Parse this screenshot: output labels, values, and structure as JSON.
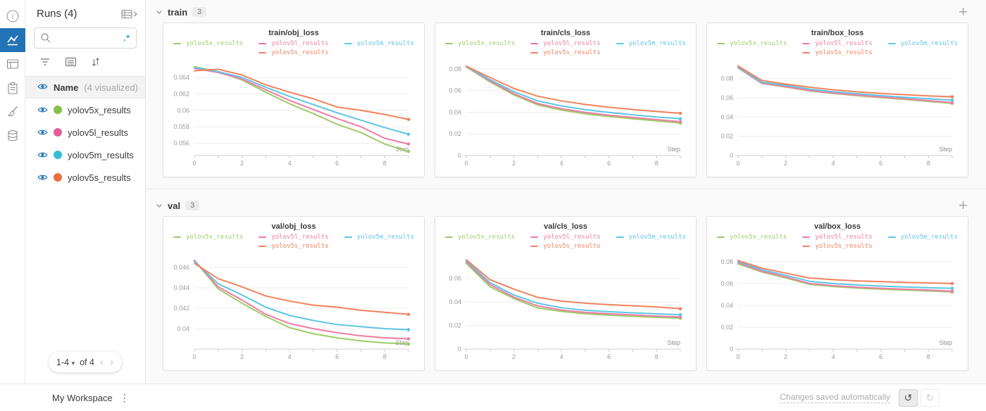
{
  "colors": {
    "accent_blue": "#2273b5",
    "regex_teal": "#00a8c5"
  },
  "icons": {
    "caret": "▾",
    "chev_left": "‹",
    "chev_right": "›",
    "plus": "+",
    "kebab": "⋮",
    "undo": "↺",
    "redo": "↻"
  },
  "rail": {
    "items": [
      "info-icon",
      "line-chart-icon",
      "panels-icon",
      "clipboard-icon",
      "brush-icon",
      "database-icon"
    ],
    "selected": "line-chart-icon"
  },
  "sidebar": {
    "title": "Runs (4)",
    "search": {
      "value": "",
      "placeholder": "",
      "regex_label": ".*"
    },
    "header_row": {
      "label": "Name",
      "meta": "(4 visualized)"
    },
    "runs": [
      {
        "name": "yolov5x_results",
        "color": "#84bf4a"
      },
      {
        "name": "yolov5l_results",
        "color": "#e2609a"
      },
      {
        "name": "yolov5m_results",
        "color": "#33bdd8"
      },
      {
        "name": "yolov5s_results",
        "color": "#eb6e3f"
      }
    ],
    "pagination": {
      "range": "1-4",
      "of": "of 4"
    }
  },
  "sections": [
    {
      "id": "train",
      "label": "train",
      "badge": "3"
    },
    {
      "id": "val",
      "label": "val",
      "badge": "3"
    }
  ],
  "footer": {
    "workspace": "My Workspace",
    "status": "Changes saved automatically"
  },
  "chart_data": [
    {
      "type": "line",
      "section": "train",
      "title": "train/obj_loss",
      "xlabel": "Step",
      "x": [
        0,
        1,
        2,
        3,
        4,
        5,
        6,
        7,
        8,
        9
      ],
      "xtick_label_values": [
        0,
        2,
        4,
        6,
        8
      ],
      "xtick_labels": [
        "0",
        "2",
        "4",
        "6",
        "8"
      ],
      "ylim": [
        0.0545,
        0.0658
      ],
      "yticks": [
        0.056,
        0.058,
        0.06,
        0.062,
        0.064
      ],
      "ytick_labels": [
        "0.056",
        "0.058",
        "0.06",
        "0.062",
        "0.064"
      ],
      "grid": true,
      "legend_position": "top",
      "series": [
        {
          "name": "yolov5x_results",
          "color": "#9ecb66",
          "values": [
            0.0653,
            0.0647,
            0.0637,
            0.0622,
            0.0608,
            0.0596,
            0.0583,
            0.0573,
            0.0559,
            0.055
          ]
        },
        {
          "name": "yolov5l_results",
          "color": "#f07ba5",
          "values": [
            0.0651,
            0.0646,
            0.0638,
            0.0625,
            0.0612,
            0.0601,
            0.059,
            0.058,
            0.0566,
            0.0559
          ]
        },
        {
          "name": "yolov5m_results",
          "color": "#5ec5e4",
          "values": [
            0.0652,
            0.0647,
            0.064,
            0.0628,
            0.0617,
            0.0607,
            0.0597,
            0.0588,
            0.0579,
            0.0571
          ]
        },
        {
          "name": "yolov5s_results",
          "color": "#f2825c",
          "values": [
            0.0648,
            0.065,
            0.0643,
            0.0631,
            0.0622,
            0.0614,
            0.0604,
            0.06,
            0.0595,
            0.0589
          ]
        }
      ]
    },
    {
      "type": "line",
      "section": "train",
      "title": "train/cls_loss",
      "xlabel": "Step",
      "x": [
        0,
        1,
        2,
        3,
        4,
        5,
        6,
        7,
        8,
        9
      ],
      "xtick_label_values": [
        0,
        2,
        4,
        6,
        8
      ],
      "xtick_labels": [
        "0",
        "2",
        "4",
        "6",
        "8"
      ],
      "ylim": [
        0,
        0.0858
      ],
      "yticks": [
        0,
        0.02,
        0.04,
        0.06,
        0.08
      ],
      "ytick_labels": [
        "0",
        "0.02",
        "0.04",
        "0.06",
        "0.08"
      ],
      "grid": true,
      "legend_position": "top",
      "series": [
        {
          "name": "yolov5x_results",
          "color": "#9ecb66",
          "values": [
            0.082,
            0.068,
            0.056,
            0.0468,
            0.042,
            0.0385,
            0.036,
            0.034,
            0.032,
            0.03
          ]
        },
        {
          "name": "yolov5l_results",
          "color": "#f07ba5",
          "values": [
            0.082,
            0.069,
            0.0572,
            0.048,
            0.0432,
            0.0398,
            0.0372,
            0.0352,
            0.0332,
            0.0312
          ]
        },
        {
          "name": "yolov5m_results",
          "color": "#5ec5e4",
          "values": [
            0.0822,
            0.07,
            0.059,
            0.0505,
            0.0458,
            0.0424,
            0.0398,
            0.0376,
            0.0356,
            0.034
          ]
        },
        {
          "name": "yolov5s_results",
          "color": "#f2825c",
          "values": [
            0.0825,
            0.072,
            0.062,
            0.0548,
            0.0505,
            0.0472,
            0.0446,
            0.0425,
            0.0407,
            0.039
          ]
        }
      ]
    },
    {
      "type": "line",
      "section": "train",
      "title": "train/box_loss",
      "xlabel": "Step",
      "x": [
        0,
        1,
        2,
        3,
        4,
        5,
        6,
        7,
        8,
        9
      ],
      "xtick_label_values": [
        0,
        2,
        4,
        6,
        8
      ],
      "xtick_labels": [
        "0",
        "2",
        "4",
        "6",
        "8"
      ],
      "ylim": [
        0,
        0.0965
      ],
      "yticks": [
        0,
        0.02,
        0.04,
        0.06,
        0.08
      ],
      "ytick_labels": [
        "0",
        "0.02",
        "0.04",
        "0.06",
        "0.08"
      ],
      "grid": true,
      "legend_position": "top",
      "series": [
        {
          "name": "yolov5x_results",
          "color": "#9ecb66",
          "values": [
            0.091,
            0.0748,
            0.0712,
            0.0672,
            0.0645,
            0.0622,
            0.0602,
            0.0583,
            0.0562,
            0.0542
          ]
        },
        {
          "name": "yolov5l_results",
          "color": "#f07ba5",
          "values": [
            0.0913,
            0.0752,
            0.0716,
            0.0676,
            0.065,
            0.0628,
            0.0608,
            0.059,
            0.057,
            0.055
          ]
        },
        {
          "name": "yolov5m_results",
          "color": "#5ec5e4",
          "values": [
            0.092,
            0.0762,
            0.0728,
            0.069,
            0.0663,
            0.0642,
            0.0622,
            0.0605,
            0.0589,
            0.0575
          ]
        },
        {
          "name": "yolov5s_results",
          "color": "#f2825c",
          "values": [
            0.093,
            0.078,
            0.0742,
            0.071,
            0.0683,
            0.0662,
            0.0645,
            0.0632,
            0.062,
            0.061
          ]
        }
      ]
    },
    {
      "type": "line",
      "section": "val",
      "title": "val/obj_loss",
      "xlabel": "Step",
      "x": [
        0,
        1,
        2,
        3,
        4,
        5,
        6,
        7,
        8,
        9
      ],
      "xtick_label_values": [
        0,
        2,
        4,
        6,
        8
      ],
      "xtick_labels": [
        "0",
        "2",
        "4",
        "6",
        "8"
      ],
      "ylim": [
        0.038,
        0.0471
      ],
      "yticks": [
        0.04,
        0.042,
        0.044,
        0.046
      ],
      "ytick_labels": [
        "0.04",
        "0.042",
        "0.044",
        "0.046"
      ],
      "grid": true,
      "legend_position": "top",
      "series": [
        {
          "name": "yolov5x_results",
          "color": "#9ecb66",
          "values": [
            0.0467,
            0.0439,
            0.0425,
            0.0412,
            0.0401,
            0.0395,
            0.0391,
            0.0388,
            0.0386,
            0.0385
          ]
        },
        {
          "name": "yolov5l_results",
          "color": "#f07ba5",
          "values": [
            0.0467,
            0.0441,
            0.0428,
            0.0414,
            0.0405,
            0.04,
            0.0396,
            0.0393,
            0.0391,
            0.039
          ]
        },
        {
          "name": "yolov5m_results",
          "color": "#5ec5e4",
          "values": [
            0.0466,
            0.0444,
            0.0433,
            0.0421,
            0.0413,
            0.0408,
            0.0404,
            0.0402,
            0.04,
            0.0399
          ]
        },
        {
          "name": "yolov5s_results",
          "color": "#f2825c",
          "values": [
            0.0464,
            0.0449,
            0.0441,
            0.0432,
            0.0427,
            0.0423,
            0.0421,
            0.0418,
            0.0416,
            0.0414
          ]
        }
      ]
    },
    {
      "type": "line",
      "section": "val",
      "title": "val/cls_loss",
      "xlabel": "Step",
      "x": [
        0,
        1,
        2,
        3,
        4,
        5,
        6,
        7,
        8,
        9
      ],
      "xtick_label_values": [
        0,
        2,
        4,
        6,
        8
      ],
      "xtick_labels": [
        "0",
        "2",
        "4",
        "6",
        "8"
      ],
      "ylim": [
        0,
        0.079
      ],
      "yticks": [
        0,
        0.02,
        0.04,
        0.06
      ],
      "ytick_labels": [
        "0",
        "0.02",
        "0.04",
        "0.06"
      ],
      "grid": true,
      "legend_position": "top",
      "series": [
        {
          "name": "yolov5x_results",
          "color": "#9ecb66",
          "values": [
            0.073,
            0.053,
            0.043,
            0.035,
            0.032,
            0.03,
            0.0288,
            0.0278,
            0.027,
            0.0262
          ]
        },
        {
          "name": "yolov5l_results",
          "color": "#f07ba5",
          "values": [
            0.074,
            0.0548,
            0.0442,
            0.0368,
            0.0332,
            0.0312,
            0.03,
            0.029,
            0.028,
            0.0272
          ]
        },
        {
          "name": "yolov5m_results",
          "color": "#5ec5e4",
          "values": [
            0.075,
            0.0565,
            0.046,
            0.039,
            0.0352,
            0.033,
            0.0318,
            0.0308,
            0.03,
            0.0292
          ]
        },
        {
          "name": "yolov5s_results",
          "color": "#f2825c",
          "values": [
            0.076,
            0.059,
            0.051,
            0.044,
            0.0408,
            0.039,
            0.0378,
            0.0368,
            0.0358,
            0.0343
          ]
        }
      ]
    },
    {
      "type": "line",
      "section": "val",
      "title": "val/box_loss",
      "xlabel": "Step",
      "x": [
        0,
        1,
        2,
        3,
        4,
        5,
        6,
        7,
        8,
        9
      ],
      "xtick_label_values": [
        0,
        2,
        4,
        6,
        8
      ],
      "xtick_labels": [
        "0",
        "2",
        "4",
        "6",
        "8"
      ],
      "ylim": [
        0,
        0.085
      ],
      "yticks": [
        0,
        0.02,
        0.04,
        0.06,
        0.08
      ],
      "ytick_labels": [
        "0",
        "0.02",
        "0.04",
        "0.06",
        "0.08"
      ],
      "grid": true,
      "legend_position": "top",
      "series": [
        {
          "name": "yolov5x_results",
          "color": "#9ecb66",
          "values": [
            0.078,
            0.0705,
            0.0652,
            0.0592,
            0.0572,
            0.0558,
            0.0548,
            0.054,
            0.0532,
            0.0522
          ]
        },
        {
          "name": "yolov5l_results",
          "color": "#f07ba5",
          "values": [
            0.079,
            0.0712,
            0.066,
            0.06,
            0.058,
            0.0566,
            0.0556,
            0.0548,
            0.054,
            0.053
          ]
        },
        {
          "name": "yolov5m_results",
          "color": "#5ec5e4",
          "values": [
            0.08,
            0.0725,
            0.0675,
            0.062,
            0.06,
            0.0586,
            0.0576,
            0.0568,
            0.0561,
            0.0556
          ]
        },
        {
          "name": "yolov5s_results",
          "color": "#f2825c",
          "values": [
            0.081,
            0.074,
            0.0695,
            0.065,
            0.0635,
            0.0624,
            0.0617,
            0.061,
            0.0605,
            0.06
          ]
        }
      ]
    }
  ]
}
